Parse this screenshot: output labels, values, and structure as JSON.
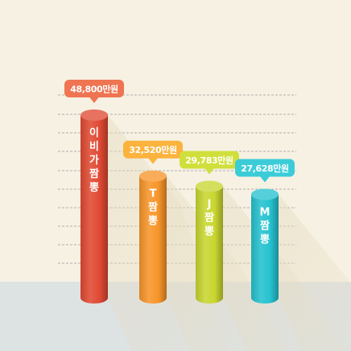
{
  "chart_data": {
    "type": "bar",
    "title": "",
    "xlabel": "",
    "ylabel": "",
    "categories": [
      "이비가짬뽕",
      "T짬뽕",
      "J짬뽕",
      "M짬뽕"
    ],
    "values": [
      48800,
      32520,
      29783,
      27628
    ],
    "data_labels": [
      "48,800만원",
      "32,520만원",
      "29,783만원",
      "27,628만원"
    ],
    "unit": "만원",
    "grid": true,
    "legend": "none",
    "colors": {
      "bars": [
        "#e04a33",
        "#f7952a",
        "#c9d630",
        "#25c2cf"
      ],
      "labels": [
        "#ef7451",
        "#fbb33d",
        "#d1df3c",
        "#3cccd8"
      ],
      "background": "#f6f1e3",
      "floor": "#dde2e3",
      "grid": "#9a9a9a"
    }
  }
}
